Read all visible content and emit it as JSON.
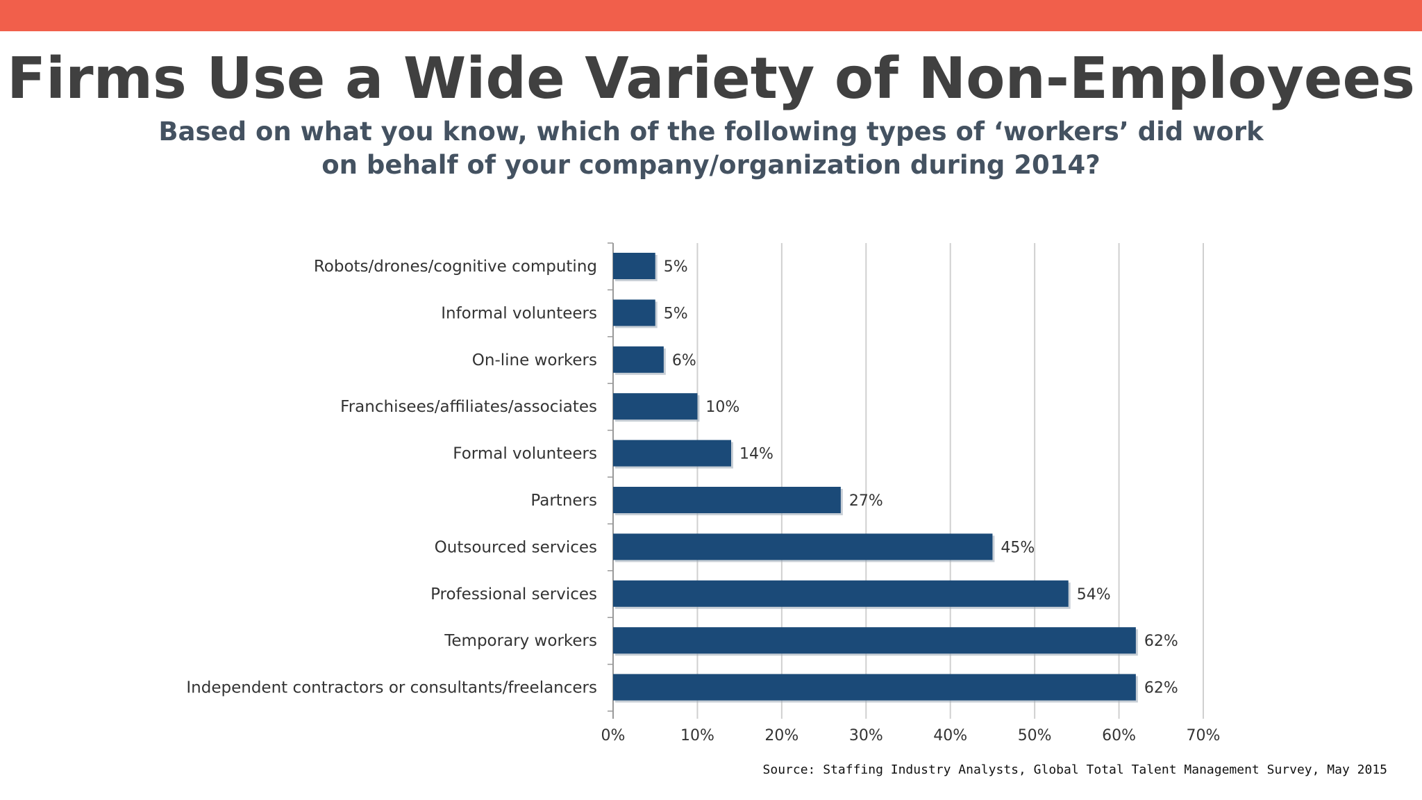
{
  "colors": {
    "accent_bar": "#f15f4b",
    "bar_fill": "#1b4a78",
    "title": "#404040",
    "subtitle": "#445261"
  },
  "header": {
    "title": "Firms Use a Wide Variety of Non-Employees",
    "subtitle": "Based on what you know, which of the following types of ‘workers’ did work on behalf of your company/organization during 2014?"
  },
  "chart_data": {
    "type": "bar",
    "orientation": "horizontal",
    "categories": [
      "Robots/drones/cognitive computing",
      "Informal volunteers",
      "On-line workers",
      "Franchisees/affiliates/associates",
      "Formal volunteers",
      "Partners",
      "Outsourced services",
      "Professional services",
      "Temporary workers",
      "Independent contractors or consultants/freelancers"
    ],
    "values": [
      5,
      5,
      6,
      10,
      14,
      27,
      45,
      54,
      62,
      62
    ],
    "value_labels": [
      "5%",
      "5%",
      "6%",
      "10%",
      "14%",
      "27%",
      "45%",
      "54%",
      "62%",
      "62%"
    ],
    "xlim": [
      0,
      70
    ],
    "x_ticks": [
      0,
      10,
      20,
      30,
      40,
      50,
      60,
      70
    ],
    "x_tick_labels": [
      "0%",
      "10%",
      "20%",
      "30%",
      "40%",
      "50%",
      "60%",
      "70%"
    ],
    "grid": "vertical"
  },
  "footer": {
    "source": "Source: Staffing Industry Analysts, Global Total Talent Management Survey, May 2015"
  }
}
